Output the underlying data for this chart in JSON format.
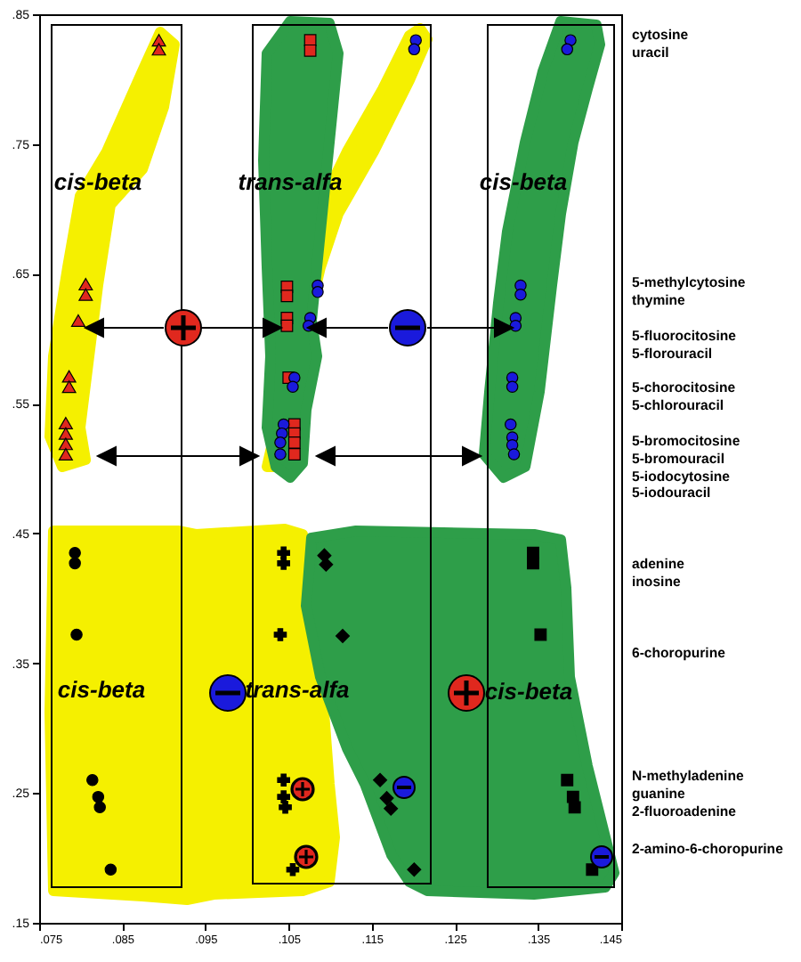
{
  "chart_data": {
    "type": "scatter",
    "xlim": [
      0.075,
      0.145
    ],
    "xticks": [
      {
        "value": 0.075,
        "label": ".075"
      },
      {
        "value": 0.085,
        "label": ".085"
      },
      {
        "value": 0.095,
        "label": ".095"
      },
      {
        "value": 0.105,
        "label": ".105"
      },
      {
        "value": 0.115,
        "label": ".115"
      },
      {
        "value": 0.125,
        "label": ".125"
      },
      {
        "value": 0.135,
        "label": ".135"
      },
      {
        "value": 0.145,
        "label": ".145"
      }
    ],
    "ylim": [
      0.15,
      0.85
    ],
    "yticks": [
      {
        "value": 0.15,
        "label": ".15"
      },
      {
        "value": 0.25,
        "label": ".25"
      },
      {
        "value": 0.35,
        "label": ".35"
      },
      {
        "value": 0.45,
        "label": ".45"
      },
      {
        "value": 0.55,
        "label": ".55"
      },
      {
        "value": 0.65,
        "label": ".65"
      },
      {
        "value": 0.75,
        "label": ".75"
      },
      {
        "value": 0.85,
        "label": ".85"
      }
    ],
    "series": [
      {
        "color": "#e0281e",
        "marker": "triangle",
        "x": [
          0.0894,
          0.0894,
          0.0806,
          0.0806,
          0.0797,
          0.0786,
          0.0786,
          0.0782,
          0.0782,
          0.0782,
          0.0782
        ],
        "values": [
          0.83,
          0.823,
          0.642,
          0.634,
          0.614,
          0.571,
          0.563,
          0.535,
          0.527,
          0.519,
          0.511
        ]
      },
      {
        "color": "#e0281e",
        "marker": "square",
        "x": [
          0.1076,
          0.1076,
          0.1048,
          0.1048,
          0.1048,
          0.1048,
          0.105,
          0.1057,
          0.1057,
          0.1057,
          0.1057
        ],
        "values": [
          0.83,
          0.822,
          0.64,
          0.633,
          0.616,
          0.61,
          0.57,
          0.534,
          0.527,
          0.52,
          0.511
        ]
      },
      {
        "color": "#1a1adc",
        "marker": "circle",
        "x": [
          0.1203,
          0.1201,
          0.1085,
          0.1085,
          0.1076,
          0.1074,
          0.1057,
          0.1055,
          0.1044,
          0.1042,
          0.104,
          0.104,
          0.1389,
          0.1385,
          0.1329,
          0.1329,
          0.1323,
          0.1323,
          0.1319,
          0.1319,
          0.1317,
          0.1319,
          0.1319,
          0.1321
        ],
        "values": [
          0.83,
          0.823,
          0.641,
          0.636,
          0.616,
          0.61,
          0.57,
          0.563,
          0.534,
          0.527,
          0.52,
          0.511,
          0.83,
          0.823,
          0.641,
          0.634,
          0.616,
          0.61,
          0.57,
          0.563,
          0.534,
          0.524,
          0.518,
          0.511
        ]
      },
      {
        "color": "#000000",
        "marker": "circle",
        "x": [
          0.0793,
          0.0793,
          0.0795,
          0.0814,
          0.0821,
          0.0823,
          0.0836
        ],
        "values": [
          0.435,
          0.427,
          0.372,
          0.26,
          0.247,
          0.239,
          0.191
        ]
      },
      {
        "color": "#000000",
        "marker": "cross",
        "x": [
          0.1044,
          0.1044,
          0.104,
          0.1044,
          0.1044,
          0.1046,
          0.1055
        ],
        "values": [
          0.435,
          0.427,
          0.372,
          0.26,
          0.247,
          0.239,
          0.191
        ]
      },
      {
        "color": "#000000",
        "marker": "diamond",
        "x": [
          0.1093,
          0.1095,
          0.1115,
          0.116,
          0.1168,
          0.1173,
          0.1201
        ],
        "values": [
          0.433,
          0.426,
          0.371,
          0.26,
          0.246,
          0.238,
          0.191
        ]
      },
      {
        "color": "#000000",
        "marker": "square",
        "x": [
          0.1344,
          0.1344,
          0.1353,
          0.1385,
          0.1392,
          0.1394,
          0.1415
        ],
        "values": [
          0.435,
          0.427,
          0.372,
          0.26,
          0.247,
          0.239,
          0.191
        ]
      }
    ],
    "annotations": [
      "cis-beta",
      "trans-alfa",
      "cis-beta",
      "cis-beta",
      "trans-alfa",
      "cis-beta",
      "cytosine",
      "uracil",
      "5-methylcytosine",
      "thymine",
      "5-fluorocitosine",
      "5-florouracil",
      "5-chorocitosine",
      "5-chlorouracil",
      "5-bromocitosine",
      "5-bromouracil",
      "5-iodocytosine",
      "5-iodouracil",
      "adenine",
      "inosine",
      "6-choropurine",
      "N-methyladenine",
      "guanine",
      "2-fluoroadenine",
      "2-amino-6-choropurine"
    ]
  }
}
